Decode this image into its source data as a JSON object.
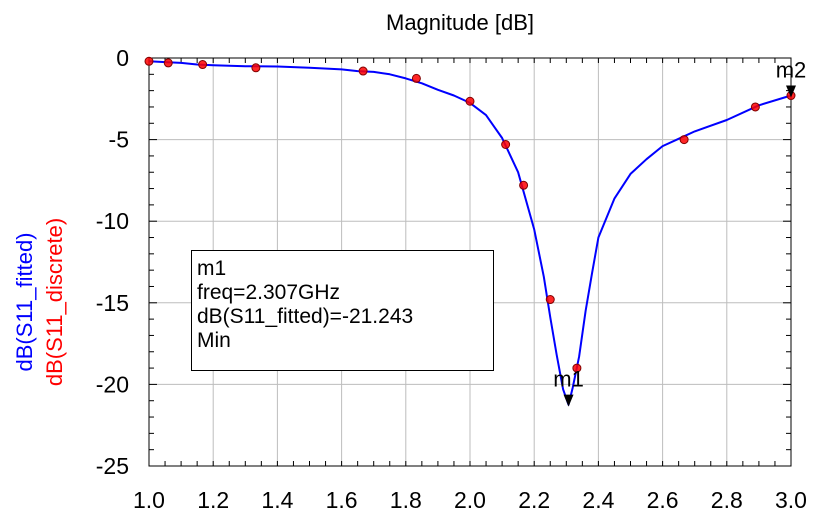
{
  "chart_data": {
    "type": "line",
    "title": "Magnitude [dB]",
    "ylabels": [
      {
        "text": "dB(S11_fitted)",
        "color": "#0000ff"
      },
      {
        "text": "dB(S11_discrete)",
        "color": "#ff0000"
      }
    ],
    "xlim": [
      1.0,
      3.0
    ],
    "ylim": [
      -25,
      0
    ],
    "xticks": [
      "1.0",
      "1.2",
      "1.4",
      "1.6",
      "1.8",
      "2.0",
      "2.2",
      "2.4",
      "2.6",
      "2.8",
      "3.0"
    ],
    "yticks": [
      "0",
      "-5",
      "-10",
      "-15",
      "-20",
      "-25"
    ],
    "grid": true,
    "series": [
      {
        "name": "dB(S11_fitted)",
        "color": "#0000ff",
        "style": "line",
        "x": [
          1.0,
          1.05,
          1.1,
          1.15,
          1.2,
          1.3,
          1.4,
          1.5,
          1.6,
          1.65,
          1.7,
          1.75,
          1.8,
          1.85,
          1.9,
          1.95,
          2.0,
          2.05,
          2.1,
          2.15,
          2.2,
          2.23,
          2.25,
          2.27,
          2.29,
          2.307,
          2.32,
          2.34,
          2.36,
          2.38,
          2.4,
          2.45,
          2.5,
          2.55,
          2.6,
          2.65,
          2.7,
          2.8,
          2.9,
          3.0
        ],
        "y": [
          -0.2,
          -0.25,
          -0.3,
          -0.4,
          -0.45,
          -0.5,
          -0.52,
          -0.6,
          -0.7,
          -0.8,
          -0.85,
          -1.0,
          -1.25,
          -1.55,
          -1.95,
          -2.3,
          -2.75,
          -3.5,
          -4.9,
          -7.0,
          -10.5,
          -13.4,
          -15.9,
          -18.2,
          -20.3,
          -21.243,
          -20.2,
          -18.3,
          -15.5,
          -13.2,
          -11.0,
          -8.6,
          -7.1,
          -6.2,
          -5.4,
          -4.95,
          -4.5,
          -3.8,
          -2.9,
          -2.3
        ]
      },
      {
        "name": "dB(S11_discrete)",
        "color": "#ff0000",
        "style": "markers",
        "x": [
          1.0,
          1.06,
          1.167,
          1.333,
          1.667,
          1.833,
          2.0,
          2.111,
          2.167,
          2.25,
          2.333,
          2.667,
          2.889,
          3.0
        ],
        "y": [
          -0.2,
          -0.3,
          -0.4,
          -0.6,
          -0.8,
          -1.25,
          -2.65,
          -5.3,
          -7.8,
          -14.8,
          -19.0,
          -5.0,
          -3.0,
          -2.3
        ]
      }
    ],
    "markers": [
      {
        "name": "m1",
        "x": 2.307,
        "y": -21.243
      },
      {
        "name": "m2",
        "x": 3.0,
        "y": -2.3
      }
    ]
  },
  "marker_box": {
    "line1": "m1",
    "line2": "freq=2.307GHz",
    "line3": "dB(S11_fitted)=-21.243",
    "line4": "Min"
  }
}
